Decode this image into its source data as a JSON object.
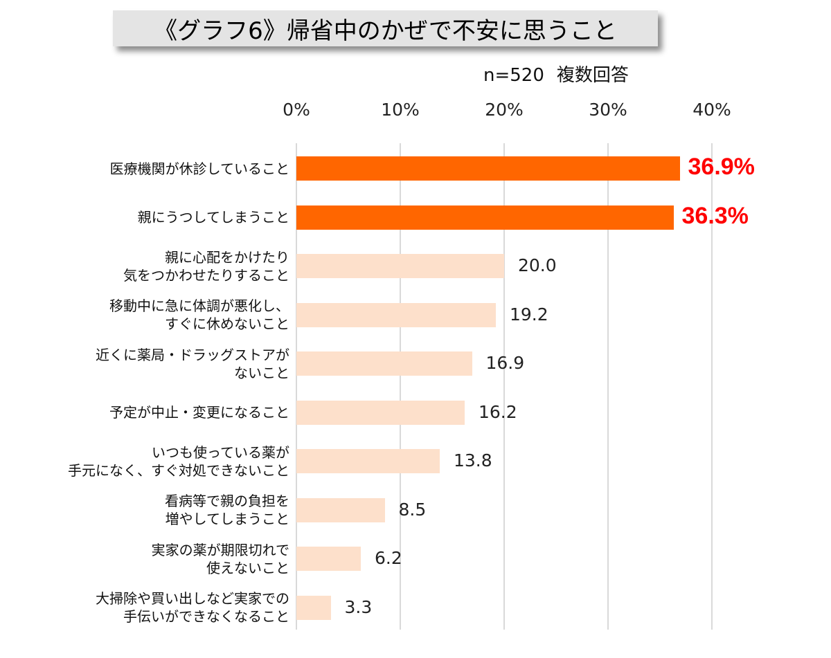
{
  "title": "《グラフ6》帰省中のかぜで不安に思うこと",
  "subtitle": {
    "n": "n=520",
    "note": "複数回答"
  },
  "colors": {
    "highlight": "#ff6600",
    "normal": "#fde0cb",
    "highlight_label": "#ff0000",
    "grid": "#d9d9d9",
    "title_bg": "#e4e4e4"
  },
  "chart_data": {
    "type": "bar",
    "orientation": "horizontal",
    "title": "《グラフ6》帰省中のかぜで不安に思うこと",
    "subtitle": "n=520 複数回答",
    "xlabel": "",
    "ylabel": "",
    "xlim": [
      0,
      40
    ],
    "x_ticks": [
      "0%",
      "10%",
      "20%",
      "30%",
      "40%"
    ],
    "grid": true,
    "legend": "none",
    "categories": [
      "医療機関が休診していること",
      "親にうつしてしまうこと",
      "親に心配をかけたり気をつかわせたりすること",
      "移動中に急に体調が悪化し、すぐに休めないこと",
      "近くに薬局・ドラッグストアがないこと",
      "予定が中止・変更になること",
      "いつも使っている薬が手元になく、すぐ対処できないこと",
      "看病等で親の負担を増やしてしまうこと",
      "実家の薬が期限切れで使えないこと",
      "大掃除や買い出しなど実家での手伝いができなくなること"
    ],
    "values": [
      36.9,
      36.3,
      20.0,
      19.2,
      16.9,
      16.2,
      13.8,
      8.5,
      6.2,
      3.3
    ],
    "unit": "%",
    "highlighted": [
      0,
      1
    ]
  },
  "bars": [
    {
      "lines": [
        "医療機関が休診していること"
      ],
      "value": 36.9,
      "label": "36.9%",
      "highlight": true
    },
    {
      "lines": [
        "親にうつしてしまうこと"
      ],
      "value": 36.3,
      "label": "36.3%",
      "highlight": true
    },
    {
      "lines": [
        "親に心配をかけたり",
        "気をつかわせたりすること"
      ],
      "value": 20.0,
      "label": "20.0",
      "highlight": false
    },
    {
      "lines": [
        "移動中に急に体調が悪化し、",
        "すぐに休めないこと"
      ],
      "value": 19.2,
      "label": "19.2",
      "highlight": false
    },
    {
      "lines": [
        "近くに薬局・ドラッグストアが",
        "ないこと"
      ],
      "value": 16.9,
      "label": "16.9",
      "highlight": false
    },
    {
      "lines": [
        "予定が中止・変更になること"
      ],
      "value": 16.2,
      "label": "16.2",
      "highlight": false
    },
    {
      "lines": [
        "いつも使っている薬が",
        "手元になく、すぐ対処できないこと"
      ],
      "value": 13.8,
      "label": "13.8",
      "highlight": false
    },
    {
      "lines": [
        "看病等で親の負担を",
        "増やしてしまうこと"
      ],
      "value": 8.5,
      "label": "8.5",
      "highlight": false
    },
    {
      "lines": [
        "実家の薬が期限切れで",
        "使えないこと"
      ],
      "value": 6.2,
      "label": "6.2",
      "highlight": false
    },
    {
      "lines": [
        "大掃除や買い出しなど実家での",
        "手伝いができなくなること"
      ],
      "value": 3.3,
      "label": "3.3",
      "highlight": false
    }
  ]
}
